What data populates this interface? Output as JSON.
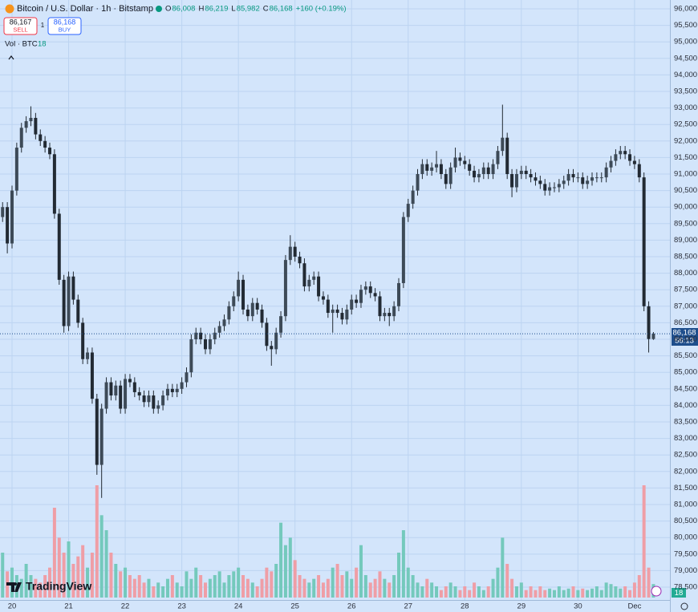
{
  "chart_data": {
    "type": "candlestick",
    "title": "Bitcoin / U.S. Dollar · 1h · Bitstamp",
    "ohlc": [
      {
        "key": "O",
        "value": "86,008"
      },
      {
        "key": "H",
        "value": "86,219"
      },
      {
        "key": "L",
        "value": "85,982"
      },
      {
        "key": "C",
        "value": "86,168"
      }
    ],
    "change": "+160 (+0.19%)",
    "sell": {
      "price": "86,167",
      "label": "SELL"
    },
    "spread": "1",
    "buy": {
      "price": "86,168",
      "label": "BUY"
    },
    "volume_title": "Vol · BTC",
    "volume_value": "18",
    "volume_badge": "18",
    "last_price_label": "86,168",
    "countdown": "56:13",
    "logo": "TradingView",
    "candle_color": "#222a33",
    "volume_up_color": "#74c9bc",
    "volume_down_color": "#ef9ea6",
    "background": "#d3e5fb",
    "grid": true,
    "xlim": [
      -0.55,
      141.5
    ],
    "ylim": [
      78112,
      96267
    ],
    "xticks": [
      {
        "value": 2,
        "label": "20"
      },
      {
        "value": 14,
        "label": "21"
      },
      {
        "value": 26,
        "label": "22"
      },
      {
        "value": 38,
        "label": "23"
      },
      {
        "value": 50,
        "label": "24"
      },
      {
        "value": 62,
        "label": "25"
      },
      {
        "value": 74,
        "label": "26"
      },
      {
        "value": 86,
        "label": "27"
      },
      {
        "value": 98,
        "label": "28"
      },
      {
        "value": 110,
        "label": "29"
      },
      {
        "value": 122,
        "label": "30"
      },
      {
        "value": 134,
        "label": "Dec"
      }
    ],
    "yticks": [
      {
        "value": 96000,
        "label": "96,000"
      },
      {
        "value": 95500,
        "label": "95,500"
      },
      {
        "value": 95000,
        "label": "95,000"
      },
      {
        "value": 94500,
        "label": "94,500"
      },
      {
        "value": 94000,
        "label": "94,000"
      },
      {
        "value": 93500,
        "label": "93,500"
      },
      {
        "value": 93000,
        "label": "93,000"
      },
      {
        "value": 92500,
        "label": "92,500"
      },
      {
        "value": 92000,
        "label": "92,000"
      },
      {
        "value": 91500,
        "label": "91,500"
      },
      {
        "value": 91000,
        "label": "91,000"
      },
      {
        "value": 90500,
        "label": "90,500"
      },
      {
        "value": 90000,
        "label": "90,000"
      },
      {
        "value": 89500,
        "label": "89,500"
      },
      {
        "value": 89000,
        "label": "89,000"
      },
      {
        "value": 88500,
        "label": "88,500"
      },
      {
        "value": 88000,
        "label": "88,000"
      },
      {
        "value": 87500,
        "label": "87,500"
      },
      {
        "value": 87000,
        "label": "87,000"
      },
      {
        "value": 86500,
        "label": "86,500"
      },
      {
        "value": 86000,
        "label": "86,000"
      },
      {
        "value": 85500,
        "label": "85,500"
      },
      {
        "value": 85000,
        "label": "85,000"
      },
      {
        "value": 84500,
        "label": "84,500"
      },
      {
        "value": 84000,
        "label": "84,000"
      },
      {
        "value": 83500,
        "label": "83,500"
      },
      {
        "value": 83000,
        "label": "83,000"
      },
      {
        "value": 82500,
        "label": "82,500"
      },
      {
        "value": 82000,
        "label": "82,000"
      },
      {
        "value": 81500,
        "label": "81,500"
      },
      {
        "value": 81000,
        "label": "81,000"
      },
      {
        "value": 80500,
        "label": "80,500"
      },
      {
        "value": 80000,
        "label": "80,000"
      },
      {
        "value": 79500,
        "label": "79,500"
      },
      {
        "value": 79000,
        "label": "79,000"
      },
      {
        "value": 78500,
        "label": "78,500"
      }
    ],
    "open": [
      89700,
      90000,
      88900,
      90500,
      91800,
      92400,
      92600,
      92700,
      92200,
      92000,
      91800,
      91600,
      89800,
      87800,
      86400,
      87900,
      87200,
      86500,
      85400,
      85600,
      84200,
      82200,
      83900,
      84700,
      84300,
      84600,
      83900,
      84800,
      84700,
      84400,
      84300,
      84100,
      84300,
      83900,
      84000,
      84300,
      84500,
      84400,
      84500,
      84700,
      85000,
      86000,
      86200,
      86000,
      85700,
      86000,
      86200,
      86400,
      86600,
      87000,
      87300,
      87800,
      86900,
      86700,
      87100,
      86900,
      86500,
      85800,
      85700,
      86200,
      86700,
      88400,
      88800,
      88500,
      88300,
      87600,
      87800,
      87900,
      87300,
      87200,
      86800,
      86900,
      86800,
      86600,
      86900,
      87200,
      87100,
      87500,
      87600,
      87400,
      87300,
      86700,
      86800,
      86700,
      87000,
      87700,
      89700,
      90100,
      90500,
      91000,
      91300,
      91100,
      91200,
      91300,
      91000,
      90700,
      91200,
      91500,
      91400,
      91300,
      91100,
      90900,
      91000,
      91200,
      91000,
      91300,
      91700,
      92100,
      91000,
      90600,
      91000,
      91100,
      91000,
      90900,
      90800,
      90700,
      90500,
      90600,
      90600,
      90700,
      90800,
      91000,
      90900,
      90900,
      90700,
      90800,
      90900,
      90900,
      90900,
      91200,
      91400,
      91600,
      91700,
      91600,
      91400,
      91300,
      90900,
      87000,
      86008
    ],
    "high": [
      90150,
      90150,
      90650,
      91950,
      92550,
      92750,
      93050,
      92850,
      92350,
      92150,
      91950,
      91750,
      89950,
      87950,
      88050,
      88050,
      87350,
      86650,
      85750,
      85750,
      84350,
      84050,
      84850,
      84850,
      84750,
      84750,
      84950,
      84950,
      84850,
      84550,
      84450,
      84450,
      84450,
      84150,
      84450,
      84650,
      84650,
      84650,
      84850,
      85150,
      86150,
      86350,
      86350,
      86150,
      86150,
      86350,
      86550,
      86750,
      87150,
      87450,
      88050,
      87950,
      87050,
      87250,
      87250,
      87050,
      86650,
      85950,
      86350,
      86850,
      88550,
      89150,
      88950,
      88650,
      88450,
      87950,
      88050,
      88050,
      87450,
      87350,
      87050,
      87050,
      86950,
      87050,
      87350,
      87350,
      87650,
      87750,
      87750,
      87550,
      87450,
      86950,
      86950,
      87150,
      87850,
      89850,
      90250,
      90650,
      91150,
      91450,
      91450,
      91350,
      91700,
      91450,
      91150,
      91350,
      91800,
      91650,
      91550,
      91450,
      91250,
      91150,
      91350,
      91350,
      91450,
      91850,
      93100,
      92250,
      91150,
      91150,
      91250,
      91250,
      91150,
      91050,
      90950,
      90850,
      90750,
      90750,
      90850,
      90950,
      91150,
      91150,
      91050,
      91050,
      90950,
      91050,
      91050,
      91050,
      91350,
      91550,
      91750,
      91850,
      91850,
      91750,
      91550,
      91450,
      91050,
      87150,
      86219
    ],
    "low": [
      89550,
      88600,
      88750,
      90350,
      91650,
      92250,
      92450,
      92050,
      91850,
      91650,
      91450,
      89650,
      87650,
      86200,
      86250,
      87050,
      86350,
      85250,
      85250,
      84050,
      81900,
      81200,
      83750,
      84150,
      84150,
      83750,
      83750,
      84550,
      84250,
      84150,
      83950,
      83950,
      83750,
      83750,
      83850,
      84150,
      84250,
      84250,
      84350,
      84550,
      84850,
      85850,
      85850,
      85550,
      85550,
      85850,
      86050,
      86250,
      86450,
      86850,
      87150,
      86750,
      86550,
      86550,
      86750,
      86350,
      85650,
      85200,
      85550,
      86050,
      86550,
      88250,
      88350,
      88150,
      87450,
      87450,
      87650,
      87150,
      87050,
      86650,
      86200,
      86650,
      86450,
      86450,
      86750,
      86950,
      86950,
      87350,
      87250,
      87150,
      86550,
      86550,
      86400,
      86550,
      86850,
      87550,
      89550,
      89950,
      90350,
      90850,
      90950,
      90950,
      91050,
      90850,
      90550,
      90550,
      91050,
      91250,
      91150,
      90950,
      90750,
      90750,
      90850,
      90850,
      90850,
      91150,
      91550,
      90850,
      90300,
      90450,
      90850,
      90850,
      90750,
      90650,
      90550,
      90350,
      90350,
      90450,
      90450,
      90550,
      90650,
      90750,
      90750,
      90550,
      90550,
      90650,
      90750,
      90750,
      90750,
      91050,
      91250,
      91450,
      91450,
      91250,
      91150,
      90750,
      86850,
      85600,
      85982
    ],
    "close": [
      90000,
      88900,
      90500,
      91800,
      92400,
      92600,
      92700,
      92200,
      92000,
      91800,
      91600,
      89800,
      87800,
      86400,
      87900,
      87200,
      86500,
      85400,
      85600,
      84200,
      82200,
      83900,
      84700,
      84300,
      84600,
      83900,
      84800,
      84700,
      84400,
      84300,
      84100,
      84300,
      83900,
      84000,
      84300,
      84500,
      84400,
      84500,
      84700,
      85000,
      86000,
      86200,
      86000,
      85700,
      86000,
      86200,
      86400,
      86600,
      87000,
      87300,
      87800,
      86900,
      86700,
      87100,
      86900,
      86500,
      85800,
      85700,
      86200,
      86700,
      88400,
      88800,
      88500,
      88300,
      87600,
      87800,
      87900,
      87300,
      87200,
      86800,
      86900,
      86800,
      86600,
      86900,
      87200,
      87100,
      87500,
      87600,
      87400,
      87300,
      86700,
      86800,
      86700,
      87000,
      87700,
      89700,
      90100,
      90500,
      91000,
      91300,
      91100,
      91200,
      91300,
      91000,
      90700,
      91200,
      91500,
      91400,
      91300,
      91100,
      90900,
      91000,
      91200,
      91000,
      91300,
      91700,
      92100,
      91000,
      90600,
      91000,
      91100,
      91000,
      90900,
      90800,
      90700,
      90500,
      90600,
      90600,
      90700,
      90800,
      91000,
      90900,
      90900,
      90700,
      90800,
      90900,
      90900,
      90900,
      91200,
      91400,
      91600,
      91700,
      91600,
      91400,
      91300,
      90900,
      87000,
      86008,
      86168
    ],
    "volume": [
      60,
      35,
      40,
      30,
      25,
      45,
      30,
      25,
      20,
      30,
      40,
      120,
      80,
      60,
      75,
      45,
      55,
      70,
      40,
      60,
      150,
      110,
      90,
      60,
      45,
      35,
      40,
      30,
      25,
      30,
      20,
      25,
      15,
      20,
      15,
      25,
      30,
      20,
      15,
      35,
      25,
      40,
      30,
      20,
      25,
      30,
      35,
      20,
      30,
      35,
      40,
      30,
      25,
      20,
      15,
      25,
      40,
      35,
      45,
      100,
      70,
      80,
      50,
      30,
      25,
      20,
      25,
      30,
      20,
      25,
      40,
      45,
      30,
      35,
      25,
      40,
      70,
      30,
      20,
      25,
      35,
      25,
      20,
      30,
      60,
      90,
      40,
      30,
      20,
      15,
      25,
      20,
      15,
      10,
      15,
      20,
      15,
      10,
      15,
      10,
      20,
      15,
      10,
      15,
      25,
      40,
      80,
      45,
      25,
      15,
      20,
      10,
      15,
      10,
      15,
      10,
      12,
      10,
      15,
      10,
      12,
      15,
      10,
      12,
      10,
      12,
      15,
      10,
      20,
      18,
      15,
      12,
      15,
      10,
      20,
      30,
      150,
      40,
      18
    ]
  }
}
